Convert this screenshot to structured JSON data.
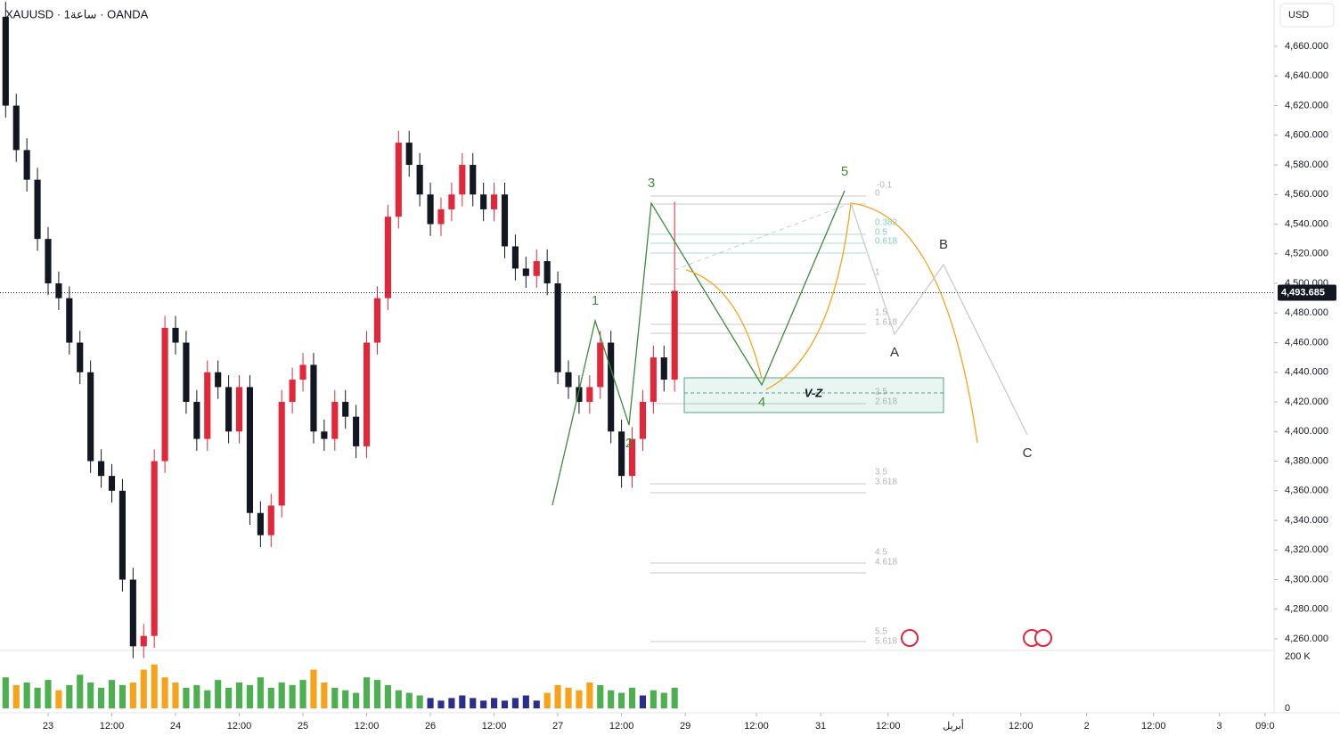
{
  "header": {
    "symbol_line": "XAUUSD · 1ساعة · OANDA",
    "currency": "USD"
  },
  "chart_data": {
    "type": "candlestick",
    "x": [
      -8,
      -6,
      -4,
      -2,
      0,
      2,
      4,
      6,
      8,
      10,
      12,
      14,
      16,
      18,
      20,
      22,
      24,
      26,
      28,
      30,
      32,
      34,
      36,
      38,
      40,
      42,
      44,
      46,
      48,
      50,
      52,
      54,
      56,
      58,
      60,
      62,
      64,
      66,
      68,
      70,
      72,
      74,
      76,
      78,
      80,
      82,
      84,
      86,
      88,
      90,
      92,
      94,
      96,
      98,
      100,
      102,
      104,
      106,
      108,
      110,
      112,
      114,
      116,
      118
    ],
    "open": [
      4680,
      4620,
      4590,
      4570,
      4530,
      4500,
      4490,
      4460,
      4440,
      4380,
      4370,
      4360,
      4300,
      4255,
      4262,
      4380,
      4470,
      4460,
      4420,
      4395,
      4440,
      4430,
      4400,
      4430,
      4345,
      4330,
      4350,
      4420,
      4435,
      4445,
      4400,
      4395,
      4420,
      4410,
      4390,
      4460,
      4490,
      4545,
      4595,
      4580,
      4560,
      4540,
      4550,
      4560,
      4580,
      4560,
      4550,
      4560,
      4525,
      4510,
      4505,
      4515,
      4500,
      4440,
      4430,
      4420,
      4430,
      4460,
      4400,
      4370,
      4395,
      4420,
      4450,
      4435
    ],
    "high": [
      4690,
      4628,
      4598,
      4578,
      4538,
      4508,
      4498,
      4468,
      4448,
      4388,
      4378,
      4368,
      4308,
      4270,
      4388,
      4478,
      4478,
      4468,
      4428,
      4448,
      4448,
      4438,
      4438,
      4438,
      4353,
      4358,
      4428,
      4443,
      4453,
      4453,
      4408,
      4428,
      4428,
      4418,
      4468,
      4498,
      4553,
      4603,
      4603,
      4588,
      4568,
      4558,
      4568,
      4588,
      4588,
      4568,
      4568,
      4568,
      4533,
      4518,
      4523,
      4523,
      4508,
      4448,
      4438,
      4438,
      4468,
      4468,
      4408,
      4403,
      4428,
      4458,
      4458,
      4555
    ],
    "low": [
      4612,
      4582,
      4562,
      4522,
      4492,
      4482,
      4452,
      4432,
      4372,
      4362,
      4352,
      4292,
      4247,
      4247,
      4254,
      4372,
      4452,
      4412,
      4387,
      4387,
      4422,
      4392,
      4392,
      4337,
      4322,
      4322,
      4342,
      4412,
      4427,
      4392,
      4387,
      4387,
      4402,
      4382,
      4382,
      4452,
      4482,
      4537,
      4572,
      4552,
      4532,
      4532,
      4542,
      4552,
      4552,
      4542,
      4542,
      4517,
      4502,
      4497,
      4497,
      4492,
      4432,
      4422,
      4412,
      4412,
      4422,
      4392,
      4362,
      4362,
      4387,
      4412,
      4427,
      4427
    ],
    "close": [
      4620,
      4590,
      4570,
      4530,
      4500,
      4490,
      4460,
      4440,
      4380,
      4370,
      4360,
      4300,
      4255,
      4262,
      4380,
      4470,
      4460,
      4420,
      4395,
      4440,
      4430,
      4400,
      4430,
      4345,
      4330,
      4350,
      4420,
      4435,
      4445,
      4400,
      4395,
      4420,
      4410,
      4390,
      4460,
      4490,
      4545,
      4595,
      4580,
      4560,
      4540,
      4550,
      4560,
      4580,
      4560,
      4550,
      4560,
      4525,
      4510,
      4505,
      4515,
      4500,
      4440,
      4430,
      4420,
      4430,
      4460,
      4400,
      4370,
      4395,
      4420,
      4450,
      4435,
      4495
    ],
    "up_color": "#e0283a",
    "down_color": "#131722",
    "xlim": [
      -9.06,
      230.9
    ],
    "xticks": [
      {
        "value": 0,
        "label": "23"
      },
      {
        "value": 12,
        "label": "12:00"
      },
      {
        "value": 24,
        "label": "24"
      },
      {
        "value": 36,
        "label": "12:00"
      },
      {
        "value": 48,
        "label": "25"
      },
      {
        "value": 60,
        "label": "12:00"
      },
      {
        "value": 72,
        "label": "26"
      },
      {
        "value": 84,
        "label": "12:00"
      },
      {
        "value": 96,
        "label": "27"
      },
      {
        "value": 108,
        "label": "12:00"
      },
      {
        "value": 120,
        "label": "29"
      },
      {
        "value": 133.4,
        "label": "12:00"
      },
      {
        "value": 145.5,
        "label": "31"
      },
      {
        "value": 158.2,
        "label": "12:00"
      },
      {
        "value": 170.5,
        "label": "أبريل"
      },
      {
        "value": 183.2,
        "label": "12:00"
      },
      {
        "value": 195.6,
        "label": "2"
      },
      {
        "value": 208.2,
        "label": "12:00"
      },
      {
        "value": 220.6,
        "label": "3"
      },
      {
        "value": 229.2,
        "label": "09:0"
      }
    ],
    "ylim": [
      4252.2,
      4691.3
    ],
    "yticks": [
      {
        "value": 4260,
        "label": "4,260.000"
      },
      {
        "value": 4280,
        "label": "4,280.000"
      },
      {
        "value": 4300,
        "label": "4,300.000"
      },
      {
        "value": 4320,
        "label": "4,320.000"
      },
      {
        "value": 4340,
        "label": "4,340.000"
      },
      {
        "value": 4360,
        "label": "4,360.000"
      },
      {
        "value": 4380,
        "label": "4,380.000"
      },
      {
        "value": 4400,
        "label": "4,400.000"
      },
      {
        "value": 4420,
        "label": "4,420.000"
      },
      {
        "value": 4440,
        "label": "4,440.000"
      },
      {
        "value": 4460,
        "label": "4,460.000"
      },
      {
        "value": 4480,
        "label": "4,480.000"
      },
      {
        "value": 4500,
        "label": "4,500.000"
      },
      {
        "value": 4520,
        "label": "4,520.000"
      },
      {
        "value": 4540,
        "label": "4,540.000"
      },
      {
        "value": 4560,
        "label": "4,560.000"
      },
      {
        "value": 4580,
        "label": "4,580.000"
      },
      {
        "value": 4600,
        "label": "4,600.000"
      },
      {
        "value": 4620,
        "label": "4,620.000"
      },
      {
        "value": 4640,
        "label": "4,640.000"
      },
      {
        "value": 4660,
        "label": "4,660.000"
      }
    ],
    "current_price": {
      "value": 4493.685,
      "label": "4,493.685"
    },
    "volume": {
      "values": [
        120,
        90,
        100,
        80,
        110,
        70,
        90,
        130,
        100,
        80,
        110,
        90,
        100,
        150,
        170,
        120,
        100,
        80,
        90,
        70,
        110,
        80,
        100,
        90,
        120,
        80,
        100,
        90,
        110,
        150,
        100,
        80,
        70,
        60,
        120,
        110,
        90,
        70,
        60,
        50,
        40,
        30,
        40,
        50,
        40,
        30,
        40,
        30,
        40,
        50,
        30,
        60,
        90,
        80,
        70,
        100,
        90,
        70,
        60,
        80,
        50,
        70,
        60,
        80
      ],
      "colors": [
        "#4caf50",
        "#f7a21b",
        "#4caf50",
        "#4caf50",
        "#4caf50",
        "#f7a21b",
        "#4caf50",
        "#4caf50",
        "#4caf50",
        "#4caf50",
        "#4caf50",
        "#4caf50",
        "#f7a21b",
        "#f7a21b",
        "#f7a21b",
        "#f7a21b",
        "#f7a21b",
        "#4caf50",
        "#4caf50",
        "#4caf50",
        "#4caf50",
        "#4caf50",
        "#4caf50",
        "#4caf50",
        "#4caf50",
        "#4caf50",
        "#4caf50",
        "#4caf50",
        "#4caf50",
        "#f7a21b",
        "#f7a21b",
        "#4caf50",
        "#4caf50",
        "#4caf50",
        "#4caf50",
        "#4caf50",
        "#4caf50",
        "#4caf50",
        "#4caf50",
        "#4caf50",
        "#2a2e8c",
        "#2a2e8c",
        "#2a2e8c",
        "#2a2e8c",
        "#2a2e8c",
        "#2a2e8c",
        "#2a2e8c",
        "#2a2e8c",
        "#2a2e8c",
        "#2a2e8c",
        "#2a2e8c",
        "#f7a21b",
        "#f7a21b",
        "#f7a21b",
        "#f7a21b",
        "#f7a21b",
        "#4caf50",
        "#4caf50",
        "#4caf50",
        "#4caf50",
        "#2a2e8c",
        "#4caf50",
        "#4caf50",
        "#4caf50"
      ],
      "ylim": [
        0,
        200
      ],
      "yticks": [
        0,
        {
          "value": 200,
          "label": "200 K"
        }
      ]
    },
    "wave_labels": [
      "1",
      "2",
      "3",
      "4",
      "5",
      "A",
      "B",
      "C"
    ],
    "zone_label": "V-Z",
    "fib_levels": [
      "-0.1",
      "0",
      "0.382",
      "0.5",
      "0.618",
      "1",
      "1.5",
      "1.618",
      "2.5",
      "2.618",
      "3.5",
      "3.618",
      "4.5",
      "4.618",
      "5.5",
      "5.618"
    ]
  }
}
